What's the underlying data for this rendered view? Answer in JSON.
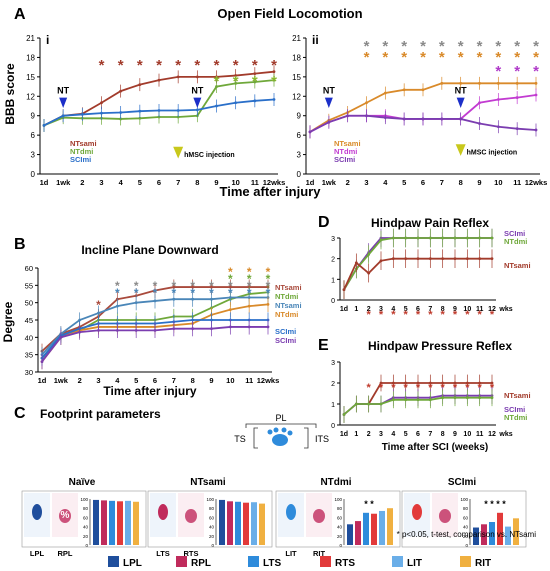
{
  "panels": {
    "A": {
      "letter": "A",
      "title": "Open Field Locomotion",
      "ylabel": "BBB score",
      "xlabel": "Time after injury"
    },
    "B": {
      "letter": "B",
      "title": "Incline Plane Downward",
      "ylabel": "Degree",
      "xlabel": "Time after injury"
    },
    "C": {
      "letter": "C",
      "title": "Footprint parameters"
    },
    "D": {
      "letter": "D",
      "title": "Hindpaw Pain Reflex"
    },
    "E": {
      "letter": "E",
      "title": "Hindpaw Pressure Reflex",
      "xlabel": "Time after SCI (weeks)"
    }
  },
  "sub_i": "i",
  "sub_ii": "ii",
  "nt_marker": "NT",
  "injection_label": "hMSC injection",
  "x_ticks": [
    "1d",
    "1wk",
    "2",
    "3",
    "4",
    "5",
    "6",
    "7",
    "8",
    "9",
    "10",
    "11",
    "12wks"
  ],
  "x_ticks_de": [
    "1d",
    "1",
    "2",
    "3",
    "4",
    "5",
    "6",
    "7",
    "8",
    "9",
    "10",
    "11",
    "12",
    "wks"
  ],
  "footprint": {
    "diagram": {
      "top": "PL",
      "left": "TS",
      "right": "ITS"
    },
    "groups": [
      {
        "title": "Naïve",
        "labels": [
          "LPL",
          "RPL"
        ],
        "percent_mark": "%",
        "bars": [
          98,
          97,
          96,
          95,
          96,
          94
        ],
        "stars": ""
      },
      {
        "title": "NTsami",
        "labels": [
          "LTS",
          "RTS"
        ],
        "bars": [
          98,
          95,
          94,
          92,
          93,
          90
        ],
        "stars": ""
      },
      {
        "title": "NTdmi",
        "labels": [
          "LIT",
          "RIT"
        ],
        "bars": [
          45,
          52,
          70,
          68,
          74,
          80
        ],
        "stars": "* *"
      },
      {
        "title": "SCImi",
        "labels": [],
        "bars": [
          38,
          45,
          50,
          70,
          40,
          58
        ],
        "stars": "* * * *"
      }
    ],
    "bar_ticks": [
      "100",
      "80",
      "60",
      "40",
      "20",
      "0"
    ],
    "legend": [
      {
        "label": "LPL",
        "color": "#1f4e9c"
      },
      {
        "label": "RPL",
        "color": "#c02b5c"
      },
      {
        "label": "LTS",
        "color": "#2e8bdb"
      },
      {
        "label": "RTS",
        "color": "#e23a3a"
      },
      {
        "label": "LIT",
        "color": "#6aaee8"
      },
      {
        "label": "RIT",
        "color": "#f0b040"
      }
    ],
    "stat_note": "* p<0.05, t-test, comparison vs. NTsami"
  },
  "colors": {
    "NTsami": "#a23b2b",
    "NTdmi": "#6fa83a",
    "SCImi": "#2a6fc9",
    "NTsami_ii": "#d98a2a",
    "SCImi_ii": "#7b3db0",
    "NTsami_B": "#a94a3c",
    "NTdmi_B": "#c09a3a",
    "SCImi_B": "#4a86b8"
  },
  "chart_data": [
    {
      "id": "Ai",
      "type": "line",
      "ylim": [
        0,
        21
      ],
      "yticks": [
        0,
        3,
        6,
        9,
        12,
        15,
        18,
        21
      ],
      "x": [
        "1d",
        "1wk",
        "2",
        "3",
        "4",
        "5",
        "6",
        "7",
        "8",
        "9",
        "10",
        "11",
        "12wks"
      ],
      "series": [
        {
          "name": "NTsami",
          "values": [
            7.5,
            9.0,
            9.3,
            11.0,
            12.8,
            13.8,
            14.5,
            15.0,
            15.0,
            15.0,
            15.2,
            15.5,
            15.8
          ]
        },
        {
          "name": "NTdmi",
          "values": [
            7.5,
            8.7,
            8.6,
            8.6,
            8.5,
            8.6,
            8.8,
            8.8,
            9.0,
            13.5,
            14.0,
            14.2,
            14.5
          ]
        },
        {
          "name": "SCImi",
          "values": [
            7.5,
            9.0,
            9.2,
            9.4,
            9.5,
            9.7,
            9.8,
            9.8,
            9.9,
            10.5,
            11.0,
            11.3,
            11.5
          ]
        }
      ],
      "stars_rows": [
        {
          "color": "#a23b2b",
          "x": [
            "3",
            "4",
            "5",
            "6",
            "7",
            "8",
            "9",
            "10",
            "11",
            "12wks"
          ]
        },
        {
          "color": "#8ab82e",
          "x": [
            "9",
            "10",
            "11",
            "12wks"
          ]
        }
      ]
    },
    {
      "id": "Aii",
      "type": "line",
      "ylim": [
        0,
        21
      ],
      "yticks": [
        0,
        3,
        6,
        9,
        12,
        15,
        18,
        21
      ],
      "x": [
        "1d",
        "1wk",
        "2",
        "3",
        "4",
        "5",
        "6",
        "7",
        "8",
        "9",
        "10",
        "11",
        "12wks"
      ],
      "series": [
        {
          "name": "NTsami",
          "values": [
            6.5,
            8.3,
            9.5,
            11.0,
            12.5,
            13.0,
            13.0,
            14.0,
            14.0,
            14.0,
            14.0,
            14.0,
            14.0
          ]
        },
        {
          "name": "NTdmi",
          "values": [
            6.5,
            8.0,
            9.0,
            9.0,
            9.0,
            8.5,
            8.5,
            8.5,
            8.5,
            11.0,
            11.5,
            11.8,
            12.2
          ]
        },
        {
          "name": "SCImi",
          "values": [
            6.5,
            8.0,
            9.0,
            9.0,
            8.7,
            8.5,
            8.5,
            8.5,
            8.5,
            7.8,
            7.3,
            7.0,
            6.8
          ]
        }
      ],
      "stars_rows": [
        {
          "color": "#8a8a8a",
          "x": [
            "3",
            "4",
            "5",
            "6",
            "7",
            "8",
            "9",
            "10",
            "11",
            "12wks"
          ]
        },
        {
          "color": "#d98a2a",
          "x": [
            "3",
            "4",
            "5",
            "6",
            "7",
            "8",
            "9",
            "10",
            "11",
            "12wks"
          ]
        },
        {
          "color": "#b03bc9",
          "x": [
            "10",
            "11",
            "12wks"
          ]
        }
      ]
    },
    {
      "id": "B",
      "type": "line",
      "ylim": [
        30,
        60
      ],
      "yticks": [
        30,
        35,
        40,
        45,
        50,
        55,
        60
      ],
      "x": [
        "1d",
        "1wk",
        "2",
        "3",
        "4",
        "5",
        "6",
        "7",
        "8",
        "9",
        "10",
        "11",
        "12wks"
      ],
      "series": [
        {
          "name": "NTsami",
          "values": [
            36.0,
            41.0,
            43.0,
            46.0,
            51.0,
            52.0,
            53.5,
            54.5,
            54.5,
            54.5,
            54.5,
            54.5,
            54.5
          ]
        },
        {
          "name": "NTdmi",
          "values": [
            34.0,
            40.0,
            42.0,
            45.0,
            45.0,
            45.0,
            45.0,
            46.0,
            46.0,
            48.5,
            51.0,
            52.5,
            53.0
          ]
        },
        {
          "name": "NTsami",
          "values": [
            35.0,
            41.0,
            45.0,
            47.0,
            49.0,
            50.0,
            50.5,
            51.0,
            51.0,
            51.0,
            51.5,
            51.5,
            51.5
          ]
        },
        {
          "name": "NTdmi",
          "values": [
            33.0,
            40.0,
            42.0,
            43.0,
            43.0,
            43.0,
            43.0,
            43.5,
            44.0,
            46.5,
            48.0,
            49.0,
            49.5
          ]
        },
        {
          "name": "SCImi",
          "values": [
            34.0,
            40.5,
            42.5,
            44.0,
            44.0,
            44.0,
            44.0,
            44.5,
            45.0,
            45.0,
            45.0,
            45.0,
            45.0
          ]
        },
        {
          "name": "SCImi",
          "values": [
            33.0,
            40.0,
            41.5,
            42.0,
            42.0,
            42.0,
            42.0,
            42.5,
            42.5,
            42.5,
            43.0,
            43.0,
            43.0
          ]
        }
      ],
      "stars_rows": [
        {
          "color": "#a94a3c",
          "x": [
            "3"
          ]
        },
        {
          "color": "#8a8a8a",
          "x": [
            "4",
            "5",
            "6",
            "7",
            "8",
            "9",
            "10",
            "11",
            "12wks"
          ]
        },
        {
          "color": "#4a86b8",
          "x": [
            "4",
            "5",
            "6",
            "7",
            "8",
            "9",
            "10",
            "11",
            "12wks"
          ]
        },
        {
          "color": "#6fa83a",
          "x": [
            "10",
            "11",
            "12wks"
          ]
        },
        {
          "color": "#d98a2a",
          "x": [
            "10",
            "11",
            "12wks"
          ]
        }
      ]
    },
    {
      "id": "D",
      "type": "line",
      "ylim": [
        0,
        3
      ],
      "yticks": [
        0,
        1,
        2,
        3
      ],
      "x": [
        "1d",
        "1",
        "2",
        "3",
        "4",
        "5",
        "6",
        "7",
        "8",
        "9",
        "10",
        "11",
        "12"
      ],
      "series": [
        {
          "name": "SCImi",
          "values": [
            0.5,
            1.5,
            2.3,
            3.0,
            3.0,
            3.0,
            3.0,
            3.0,
            3.0,
            3.0,
            3.0,
            3.0,
            3.0
          ]
        },
        {
          "name": "NTdmi",
          "values": [
            0.5,
            1.5,
            2.2,
            2.9,
            3.0,
            3.0,
            3.0,
            3.0,
            3.0,
            3.0,
            3.0,
            3.0,
            3.0
          ]
        },
        {
          "name": "NTsami",
          "values": [
            0.5,
            1.8,
            1.3,
            1.9,
            2.0,
            2.0,
            2.0,
            2.0,
            2.0,
            2.0,
            2.0,
            2.0,
            2.0
          ]
        }
      ],
      "stars_rows": [
        {
          "color": "#c0392b",
          "x": [
            "2",
            "3",
            "4",
            "5",
            "6",
            "7",
            "8",
            "9",
            "10",
            "11",
            "12"
          ]
        }
      ]
    },
    {
      "id": "E",
      "type": "line",
      "ylim": [
        0,
        3
      ],
      "yticks": [
        0,
        1,
        2,
        3
      ],
      "x": [
        "1d",
        "1",
        "2",
        "3",
        "4",
        "5",
        "6",
        "7",
        "8",
        "9",
        "10",
        "11",
        "12"
      ],
      "series": [
        {
          "name": "NTsami",
          "values": [
            0.5,
            1.0,
            1.0,
            2.0,
            2.0,
            2.0,
            2.0,
            2.0,
            2.0,
            2.0,
            2.0,
            2.0,
            2.0
          ]
        },
        {
          "name": "SCImi",
          "values": [
            0.5,
            1.0,
            1.0,
            1.0,
            1.3,
            1.3,
            1.3,
            1.3,
            1.4,
            1.4,
            1.4,
            1.4,
            1.4
          ]
        },
        {
          "name": "NTdmi",
          "values": [
            0.5,
            1.0,
            1.0,
            1.0,
            1.2,
            1.2,
            1.2,
            1.2,
            1.3,
            1.3,
            1.3,
            1.3,
            1.3
          ]
        }
      ],
      "stars_rows": [
        {
          "color": "#c0392b",
          "x": [
            "2",
            "3",
            "4",
            "5",
            "6",
            "7",
            "8",
            "9",
            "10",
            "11",
            "12"
          ]
        }
      ]
    }
  ]
}
